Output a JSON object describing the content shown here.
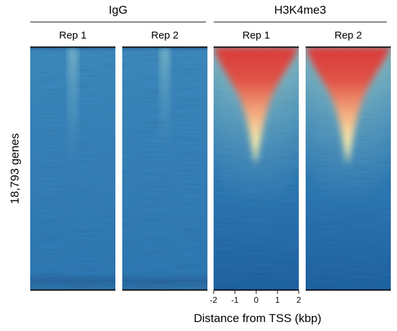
{
  "chart_data": {
    "type": "heatmap",
    "groups": [
      {
        "title": "IgG",
        "panels": [
          {
            "label": "Rep 1",
            "signal": "low"
          },
          {
            "label": "Rep 2",
            "signal": "low"
          }
        ]
      },
      {
        "title": "H3K4me3",
        "panels": [
          {
            "label": "Rep 1",
            "signal": "high"
          },
          {
            "label": "Rep 2",
            "signal": "high"
          }
        ]
      }
    ],
    "ylabel": "18,793 genes",
    "xlabel": "Distance from TSS (kbp)",
    "x_ticks": [
      "-2",
      "-1",
      "0",
      "1",
      "2"
    ],
    "xlim": [
      -2,
      2
    ],
    "n_rows": 18793,
    "colormap": {
      "low": "#2f7ab6",
      "mid": "#f6f2b8",
      "high": "#d83a3a"
    }
  }
}
